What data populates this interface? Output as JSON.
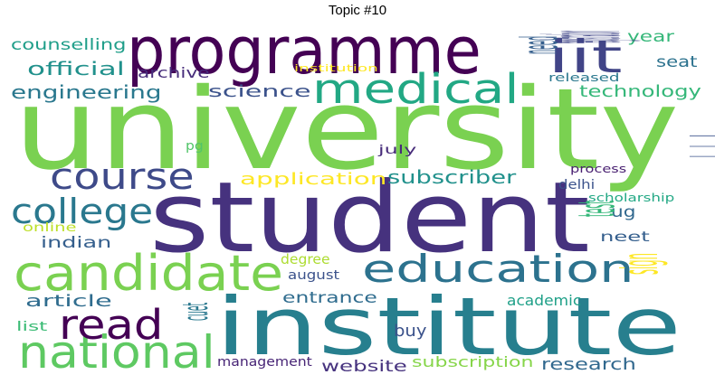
{
  "title": "Topic #10",
  "words": [
    {
      "text": "university",
      "color": "#7ad151"
    },
    {
      "text": "student",
      "color": "#46327e"
    },
    {
      "text": "institute",
      "color": "#277f8e"
    },
    {
      "text": "programme",
      "color": "#440154"
    },
    {
      "text": "candidate",
      "color": "#7ad151"
    },
    {
      "text": "education",
      "color": "#2c728e"
    },
    {
      "text": "admission",
      "color": "#3b528b"
    },
    {
      "text": "national",
      "color": "#5ec962"
    },
    {
      "text": "medical",
      "color": "#22a884"
    },
    {
      "text": "course",
      "color": "#3e4a89"
    },
    {
      "text": "read",
      "color": "#440154"
    },
    {
      "text": "iit",
      "color": "#414487"
    },
    {
      "text": "college",
      "color": "#2a788e"
    },
    {
      "text": "engineering",
      "color": "#2a788e"
    },
    {
      "text": "official",
      "color": "#21918c"
    },
    {
      "text": "counselling",
      "color": "#1f9e89"
    },
    {
      "text": "science",
      "color": "#3b528b"
    },
    {
      "text": "technology",
      "color": "#35b779"
    },
    {
      "text": "application",
      "color": "#fde725"
    },
    {
      "text": "subscriber",
      "color": "#21918c"
    },
    {
      "text": "indian",
      "color": "#355f8d"
    },
    {
      "text": "article",
      "color": "#2f6c8e"
    },
    {
      "text": "entrance",
      "color": "#2f6c8e"
    },
    {
      "text": "website",
      "color": "#46327e"
    },
    {
      "text": "research",
      "color": "#31688e"
    },
    {
      "text": "year",
      "color": "#35b779"
    },
    {
      "text": "seat",
      "color": "#2c728e"
    },
    {
      "text": "need",
      "color": "#355f8d"
    },
    {
      "text": "archive",
      "color": "#472d7b"
    },
    {
      "text": "institution",
      "color": "#fde725"
    },
    {
      "text": "registration",
      "color": "#404688"
    },
    {
      "text": "released",
      "color": "#2a788e"
    },
    {
      "text": "july",
      "color": "#472c7a"
    },
    {
      "text": "pg",
      "color": "#52c569"
    },
    {
      "text": "process",
      "color": "#481f70"
    },
    {
      "text": "delhi",
      "color": "#3b528b"
    },
    {
      "text": "scholarship",
      "color": "#22a884"
    },
    {
      "text": "ug",
      "color": "#31688e"
    },
    {
      "text": "test",
      "color": "#35b779"
    },
    {
      "text": "neet",
      "color": "#355f8d"
    },
    {
      "text": "online",
      "color": "#bddf26"
    },
    {
      "text": "degree",
      "color": "#addc30"
    },
    {
      "text": "august",
      "color": "#3b528b"
    },
    {
      "text": "sign",
      "color": "#fde725"
    },
    {
      "text": "cuet",
      "color": "#2a788e"
    },
    {
      "text": "academic",
      "color": "#1fa088"
    },
    {
      "text": "buy",
      "color": "#3b528b"
    },
    {
      "text": "list",
      "color": "#3bbb75"
    },
    {
      "text": "management",
      "color": "#482576"
    },
    {
      "text": "subscription",
      "color": "#86d549"
    }
  ]
}
